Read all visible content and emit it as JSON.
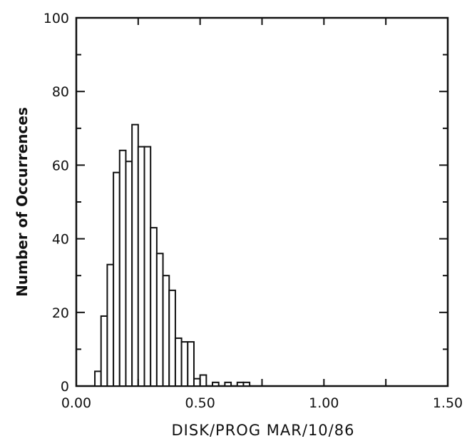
{
  "chart_data": {
    "type": "bar",
    "xlabel": "DISK/PROG MAR/10/86",
    "ylabel": "Number of Occurrences",
    "xlim": [
      0.0,
      1.5
    ],
    "ylim": [
      0,
      100
    ],
    "bin_width": 0.025,
    "x_ticks": [
      {
        "value": 0.0,
        "label": "0.00"
      },
      {
        "value": 0.5,
        "label": "0.50"
      },
      {
        "value": 1.0,
        "label": "1.00"
      },
      {
        "value": 1.5,
        "label": "1.50"
      }
    ],
    "y_ticks": [
      {
        "value": 0,
        "label": "0"
      },
      {
        "value": 20,
        "label": "20"
      },
      {
        "value": 40,
        "label": "40"
      },
      {
        "value": 60,
        "label": "60"
      },
      {
        "value": 80,
        "label": "80"
      },
      {
        "value": 100,
        "label": "100"
      }
    ],
    "bins": [
      {
        "x": 0.075,
        "value": 4
      },
      {
        "x": 0.1,
        "value": 19
      },
      {
        "x": 0.125,
        "value": 33
      },
      {
        "x": 0.15,
        "value": 58
      },
      {
        "x": 0.175,
        "value": 64
      },
      {
        "x": 0.2,
        "value": 61
      },
      {
        "x": 0.225,
        "value": 71
      },
      {
        "x": 0.25,
        "value": 65
      },
      {
        "x": 0.275,
        "value": 65
      },
      {
        "x": 0.3,
        "value": 43
      },
      {
        "x": 0.325,
        "value": 36
      },
      {
        "x": 0.35,
        "value": 30
      },
      {
        "x": 0.375,
        "value": 26
      },
      {
        "x": 0.4,
        "value": 13
      },
      {
        "x": 0.425,
        "value": 12
      },
      {
        "x": 0.45,
        "value": 12
      },
      {
        "x": 0.475,
        "value": 2
      },
      {
        "x": 0.5,
        "value": 3
      },
      {
        "x": 0.55,
        "value": 1
      },
      {
        "x": 0.6,
        "value": 1
      },
      {
        "x": 0.65,
        "value": 1
      },
      {
        "x": 0.675,
        "value": 1
      }
    ],
    "grid": false,
    "legend": "none"
  }
}
